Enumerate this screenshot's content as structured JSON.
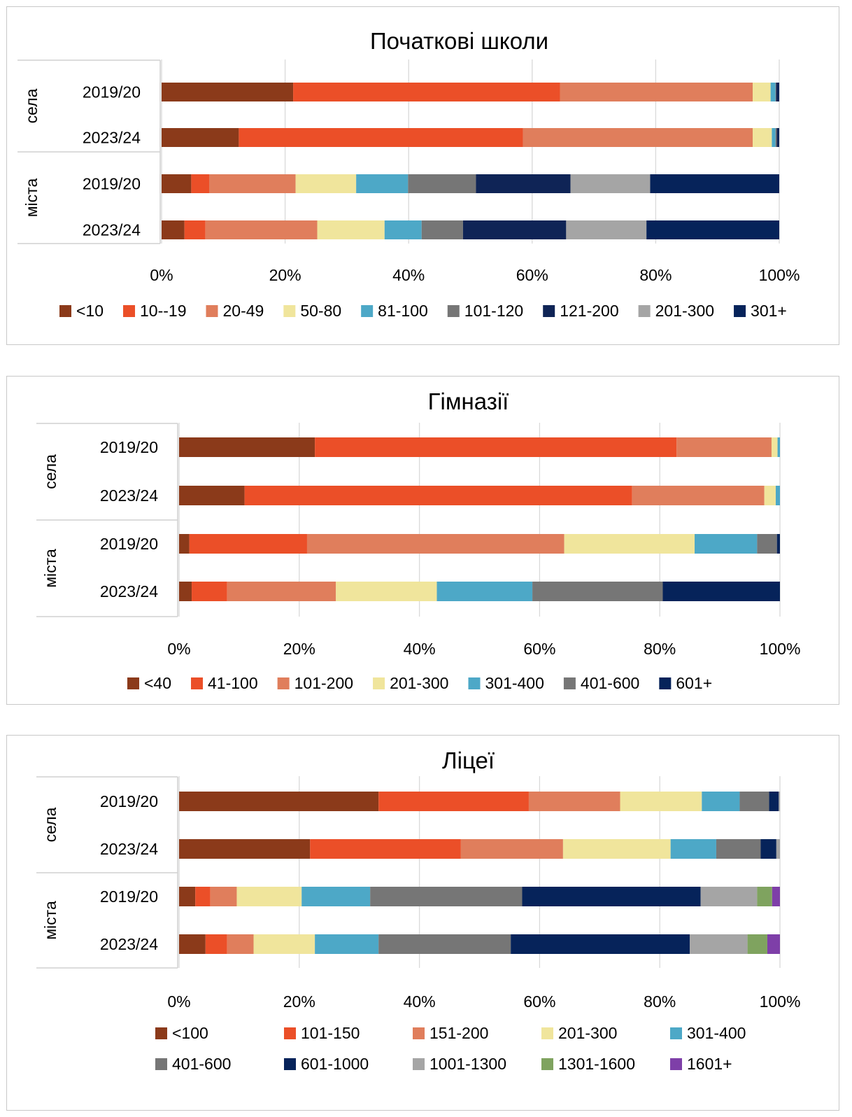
{
  "chart_data": [
    {
      "type": "bar",
      "orientation": "horizontal",
      "stacked": "percent",
      "title": "Початкові школи",
      "groups": [
        "села",
        "міста"
      ],
      "categories": [
        "2019/20",
        "2023/24",
        "2019/20",
        "2023/24"
      ],
      "xlim": [
        0,
        100
      ],
      "xticks": [
        "0%",
        "20%",
        "40%",
        "60%",
        "80%",
        "100%"
      ],
      "grid": "vertical",
      "legend": "bottom",
      "series": [
        {
          "name": "<10",
          "color": "#8B3A1A",
          "values": [
            21.3,
            12.5,
            4.8,
            3.7
          ]
        },
        {
          "name": "10--19",
          "color": "#EB4F28",
          "values": [
            43.2,
            46.0,
            2.9,
            3.4
          ]
        },
        {
          "name": "20-49",
          "color": "#E07E5C",
          "values": [
            31.2,
            37.2,
            14.0,
            18.1
          ]
        },
        {
          "name": "50-80",
          "color": "#F0E59C",
          "values": [
            2.9,
            3.1,
            9.8,
            10.9
          ]
        },
        {
          "name": "81-100",
          "color": "#4DA8C7",
          "values": [
            0.8,
            0.6,
            8.4,
            6.0
          ]
        },
        {
          "name": "101-120",
          "color": "#767676",
          "values": [
            0.1,
            0.2,
            11.0,
            6.7
          ]
        },
        {
          "name": "121-200",
          "color": "#0F2456",
          "values": [
            0.5,
            0.4,
            15.3,
            16.7
          ]
        },
        {
          "name": "201-300",
          "color": "#A5A5A5",
          "values": [
            0.0,
            0.0,
            12.9,
            13.0
          ]
        },
        {
          "name": "301+",
          "color": "#06235A",
          "values": [
            0.0,
            0.0,
            20.9,
            21.5
          ]
        }
      ]
    },
    {
      "type": "bar",
      "orientation": "horizontal",
      "stacked": "percent",
      "title": "Гімназії",
      "groups": [
        "села",
        "міста"
      ],
      "categories": [
        "2019/20",
        "2023/24",
        "2019/20",
        "2023/24"
      ],
      "xlim": [
        0,
        100
      ],
      "xticks": [
        "0%",
        "20%",
        "40%",
        "60%",
        "80%",
        "100%"
      ],
      "grid": "vertical",
      "legend": "bottom",
      "series": [
        {
          "name": "<40",
          "color": "#8B3A1A",
          "values": [
            22.6,
            10.9,
            1.7,
            2.1
          ]
        },
        {
          "name": "41-100",
          "color": "#EB4F28",
          "values": [
            60.2,
            64.5,
            19.6,
            5.9
          ]
        },
        {
          "name": "101-200",
          "color": "#E07E5C",
          "values": [
            15.8,
            22.0,
            42.8,
            18.1
          ]
        },
        {
          "name": "201-300",
          "color": "#F0E59C",
          "values": [
            1.0,
            1.9,
            21.7,
            16.8
          ]
        },
        {
          "name": "301-400",
          "color": "#4DA8C7",
          "values": [
            0.4,
            0.7,
            10.4,
            15.9
          ]
        },
        {
          "name": "401-600",
          "color": "#767676",
          "values": [
            0.0,
            0.0,
            3.3,
            21.7
          ]
        },
        {
          "name": "601+",
          "color": "#06235A",
          "values": [
            0.0,
            0.0,
            0.5,
            19.5
          ]
        }
      ]
    },
    {
      "type": "bar",
      "orientation": "horizontal",
      "stacked": "percent",
      "title": "Ліцеї",
      "groups": [
        "села",
        "міста"
      ],
      "categories": [
        "2019/20",
        "2023/24",
        "2019/20",
        "2023/24"
      ],
      "xlim": [
        0,
        100
      ],
      "xticks": [
        "0%",
        "20%",
        "40%",
        "60%",
        "80%",
        "100%"
      ],
      "grid": "vertical",
      "legend": "bottom",
      "series": [
        {
          "name": "<100",
          "color": "#8B3A1A",
          "values": [
            33.2,
            21.8,
            2.7,
            4.4
          ]
        },
        {
          "name": "101-150",
          "color": "#EB4F28",
          "values": [
            25.0,
            25.1,
            2.5,
            3.6
          ]
        },
        {
          "name": "151-200",
          "color": "#E07E5C",
          "values": [
            15.2,
            17.0,
            4.4,
            4.4
          ]
        },
        {
          "name": "201-300",
          "color": "#F0E59C",
          "values": [
            13.6,
            17.9,
            10.8,
            10.2
          ]
        },
        {
          "name": "301-400",
          "color": "#4DA8C7",
          "values": [
            6.3,
            7.6,
            11.4,
            10.6
          ]
        },
        {
          "name": "401-600",
          "color": "#767676",
          "values": [
            4.9,
            7.4,
            25.3,
            22.0
          ]
        },
        {
          "name": "601-1000",
          "color": "#06235A",
          "values": [
            1.6,
            2.6,
            29.7,
            29.8
          ]
        },
        {
          "name": "1001-1300",
          "color": "#A5A5A5",
          "values": [
            0.2,
            0.6,
            9.4,
            9.6
          ]
        },
        {
          "name": "1301-1600",
          "color": "#7FA35F",
          "values": [
            0.0,
            0.0,
            2.5,
            3.3
          ]
        },
        {
          "name": "1601+",
          "color": "#7E3FA8",
          "values": [
            0.0,
            0.0,
            1.3,
            2.1
          ]
        }
      ]
    }
  ]
}
